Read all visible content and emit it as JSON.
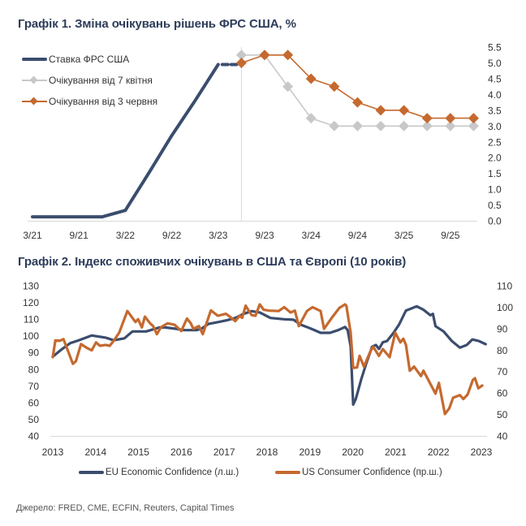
{
  "colors": {
    "title": "#2d3c5a",
    "fed_rate": "#3b4d6e",
    "expect_apr": "#c8c8c8",
    "expect_jun": "#c5692f",
    "eu": "#3b4d6e",
    "us": "#c5692f",
    "axis": "#d9d9d9"
  },
  "source": "Джерело: FRED, CME, ECFIN, Reuters, Capital Times",
  "chart_data": [
    {
      "type": "line",
      "title": "Графік 1. Зміна очікувань рішень ФРС США, %",
      "xlabel": "",
      "ylabel": "",
      "categories": [
        "3/21",
        "6/21",
        "9/21",
        "12/21",
        "3/22",
        "6/22",
        "9/22",
        "12/22",
        "3/23",
        "6/23",
        "9/23",
        "12/23",
        "3/24",
        "6/24",
        "9/24",
        "12/24",
        "3/25",
        "6/25",
        "9/25",
        "12/25"
      ],
      "x_tick_labels": [
        "3/21",
        "9/21",
        "3/22",
        "9/22",
        "3/23",
        "9/23",
        "3/24",
        "9/24",
        "3/25",
        "9/25"
      ],
      "y_axis": {
        "side": "right",
        "min": 0,
        "max": 5.5,
        "step": 0.5,
        "ticks": [
          "0.0",
          "0.5",
          "1.0",
          "1.5",
          "2.0",
          "2.5",
          "3.0",
          "3.5",
          "4.0",
          "4.5",
          "5.0",
          "5.5"
        ]
      },
      "reference_line_at": "6/23",
      "grid": false,
      "legend_position": "top-left",
      "series": [
        {
          "name": "Ставка ФРС США",
          "color": "#3b4d6e",
          "marker": "none",
          "start": "3/21",
          "values": [
            0.125,
            0.125,
            0.125,
            0.125,
            0.33,
            1.5,
            2.7,
            3.8,
            4.95
          ],
          "dashed_extension": {
            "from": "3/23",
            "to": "6/23",
            "value": 4.95
          }
        },
        {
          "name": "Очікування від 7 квітня",
          "color": "#c8c8c8",
          "marker": "diamond",
          "start": "6/23",
          "values": [
            5.25,
            5.25,
            4.25,
            3.25,
            3.0,
            3.0,
            3.0,
            3.0,
            3.0,
            3.0,
            3.0
          ]
        },
        {
          "name": "Очікування від 3 червня",
          "color": "#c5692f",
          "marker": "diamond",
          "start": "6/23",
          "values": [
            5.0,
            5.25,
            5.25,
            4.5,
            4.25,
            3.75,
            3.5,
            3.5,
            3.25,
            3.25,
            3.25
          ]
        }
      ]
    },
    {
      "type": "line",
      "title": "Графік 2. Індекс споживчих очікувань в США та Європі (10 років)",
      "xlabel": "",
      "x_range": [
        2013,
        2023
      ],
      "x_tick_labels": [
        "2013",
        "2014",
        "2015",
        "2016",
        "2017",
        "2018",
        "2019",
        "2020",
        "2021",
        "2022",
        "2023"
      ],
      "y_left": {
        "min": 40,
        "max": 130,
        "step": 10,
        "ticks": [
          "40",
          "50",
          "60",
          "70",
          "80",
          "90",
          "100",
          "110",
          "120",
          "130"
        ]
      },
      "y_right": {
        "min": 40,
        "max": 110,
        "step": 10,
        "ticks": [
          "40",
          "50",
          "60",
          "70",
          "80",
          "90",
          "100",
          "110"
        ]
      },
      "grid": false,
      "legend_position": "bottom",
      "series": [
        {
          "name": "EU Economic Confidence (л.ш.)",
          "axis": "left",
          "color": "#3b4d6e",
          "points": [
            [
              2013.0,
              87.5
            ],
            [
              2013.22,
              92.1
            ],
            [
              2013.41,
              95.6
            ],
            [
              2013.6,
              97.2
            ],
            [
              2013.91,
              100.2
            ],
            [
              2014.23,
              98.9
            ],
            [
              2014.42,
              97.3
            ],
            [
              2014.67,
              98.5
            ],
            [
              2014.86,
              102.6
            ],
            [
              2015.18,
              102.6
            ],
            [
              2015.49,
              105.0
            ],
            [
              2015.62,
              105.0
            ],
            [
              2015.87,
              104.2
            ],
            [
              2016.06,
              103.4
            ],
            [
              2016.35,
              103.4
            ],
            [
              2016.47,
              104.2
            ],
            [
              2016.63,
              107.1
            ],
            [
              2016.88,
              108.3
            ],
            [
              2017.07,
              109.4
            ],
            [
              2017.26,
              110.7
            ],
            [
              2017.45,
              113.1
            ],
            [
              2017.64,
              114.8
            ],
            [
              2017.83,
              114.0
            ],
            [
              2018.08,
              110.7
            ],
            [
              2018.4,
              109.9
            ],
            [
              2018.62,
              109.6
            ],
            [
              2018.78,
              106.7
            ],
            [
              2019.03,
              104.2
            ],
            [
              2019.25,
              101.8
            ],
            [
              2019.47,
              101.8
            ],
            [
              2019.66,
              103.4
            ],
            [
              2019.82,
              105.3
            ],
            [
              2019.88,
              103.4
            ],
            [
              2019.95,
              93.7
            ],
            [
              2020.01,
              58.8
            ],
            [
              2020.07,
              62.1
            ],
            [
              2020.2,
              74.2
            ],
            [
              2020.32,
              83.9
            ],
            [
              2020.45,
              93.4
            ],
            [
              2020.54,
              94.5
            ],
            [
              2020.61,
              92.1
            ],
            [
              2020.7,
              96.1
            ],
            [
              2020.8,
              96.9
            ],
            [
              2020.95,
              101.8
            ],
            [
              2021.08,
              106.7
            ],
            [
              2021.24,
              115.1
            ],
            [
              2021.37,
              116.4
            ],
            [
              2021.49,
              117.7
            ],
            [
              2021.65,
              115.6
            ],
            [
              2021.81,
              112.3
            ],
            [
              2021.87,
              113.1
            ],
            [
              2021.93,
              105.8
            ],
            [
              2022.12,
              102.6
            ],
            [
              2022.31,
              96.9
            ],
            [
              2022.5,
              92.9
            ],
            [
              2022.66,
              94.5
            ],
            [
              2022.79,
              97.8
            ],
            [
              2022.94,
              96.9
            ],
            [
              2023.1,
              95.0
            ]
          ]
        },
        {
          "name": "US Consumer Confidence (пр.ш.)",
          "axis": "right",
          "color": "#c5692f",
          "points": [
            [
              2013.0,
              76.7
            ],
            [
              2013.06,
              84.5
            ],
            [
              2013.16,
              84.3
            ],
            [
              2013.25,
              85.1
            ],
            [
              2013.47,
              73.6
            ],
            [
              2013.54,
              74.8
            ],
            [
              2013.66,
              82.8
            ],
            [
              2013.79,
              81.1
            ],
            [
              2013.91,
              79.9
            ],
            [
              2014.01,
              83.6
            ],
            [
              2014.1,
              82.0
            ],
            [
              2014.23,
              82.4
            ],
            [
              2014.33,
              82.0
            ],
            [
              2014.42,
              84.3
            ],
            [
              2014.55,
              88.1
            ],
            [
              2014.74,
              98.2
            ],
            [
              2014.93,
              93.1
            ],
            [
              2014.99,
              94.4
            ],
            [
              2015.08,
              90.6
            ],
            [
              2015.15,
              95.6
            ],
            [
              2015.27,
              92.5
            ],
            [
              2015.34,
              91.2
            ],
            [
              2015.43,
              87.4
            ],
            [
              2015.52,
              90.6
            ],
            [
              2015.68,
              92.5
            ],
            [
              2015.84,
              91.8
            ],
            [
              2016.0,
              88.9
            ],
            [
              2016.13,
              94.7
            ],
            [
              2016.22,
              92.5
            ],
            [
              2016.28,
              89.9
            ],
            [
              2016.41,
              91.2
            ],
            [
              2016.5,
              87.4
            ],
            [
              2016.69,
              98.5
            ],
            [
              2016.85,
              96.0
            ],
            [
              2017.04,
              96.9
            ],
            [
              2017.13,
              95.6
            ],
            [
              2017.26,
              93.5
            ],
            [
              2017.36,
              96.0
            ],
            [
              2017.42,
              95.0
            ],
            [
              2017.5,
              100.7
            ],
            [
              2017.64,
              96.3
            ],
            [
              2017.73,
              96.0
            ],
            [
              2017.83,
              101.3
            ],
            [
              2017.92,
              98.8
            ],
            [
              2018.05,
              98.4
            ],
            [
              2018.27,
              98.2
            ],
            [
              2018.4,
              100.0
            ],
            [
              2018.55,
              97.5
            ],
            [
              2018.65,
              98.4
            ],
            [
              2018.74,
              91.2
            ],
            [
              2018.93,
              98.2
            ],
            [
              2019.06,
              100.0
            ],
            [
              2019.25,
              98.2
            ],
            [
              2019.33,
              89.9
            ],
            [
              2019.53,
              95.6
            ],
            [
              2019.69,
              99.7
            ],
            [
              2019.82,
              101.3
            ],
            [
              2019.85,
              100.7
            ],
            [
              2019.95,
              88.1
            ],
            [
              2020.01,
              71.7
            ],
            [
              2020.1,
              71.9
            ],
            [
              2020.16,
              77.3
            ],
            [
              2020.26,
              72.3
            ],
            [
              2020.42,
              79.8
            ],
            [
              2020.48,
              81.5
            ],
            [
              2020.61,
              77.3
            ],
            [
              2020.7,
              80.5
            ],
            [
              2020.86,
              76.7
            ],
            [
              2020.99,
              88.1
            ],
            [
              2021.11,
              83.6
            ],
            [
              2021.18,
              85.3
            ],
            [
              2021.24,
              82.4
            ],
            [
              2021.33,
              70.4
            ],
            [
              2021.43,
              72.3
            ],
            [
              2021.59,
              67.9
            ],
            [
              2021.65,
              70.4
            ],
            [
              2021.93,
              59.7
            ],
            [
              2022.01,
              64.7
            ],
            [
              2022.15,
              50.2
            ],
            [
              2022.25,
              52.8
            ],
            [
              2022.34,
              57.8
            ],
            [
              2022.5,
              59.0
            ],
            [
              2022.58,
              57.2
            ],
            [
              2022.68,
              59.3
            ],
            [
              2022.8,
              66.0
            ],
            [
              2022.85,
              66.9
            ],
            [
              2022.93,
              62.2
            ],
            [
              2023.02,
              63.5
            ]
          ]
        }
      ]
    }
  ]
}
